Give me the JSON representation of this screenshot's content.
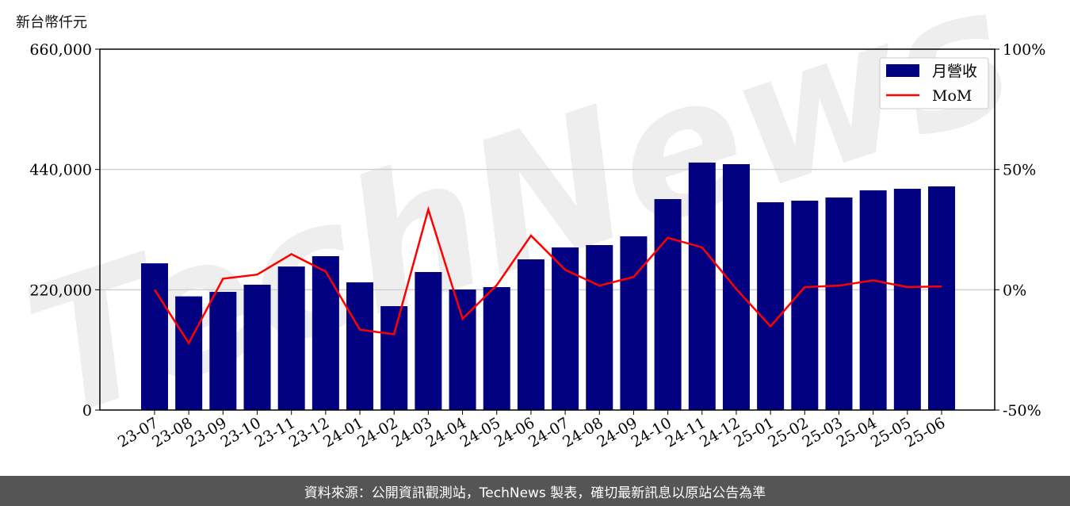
{
  "chart_data": {
    "type": "bar+line",
    "y_unit_label": "新台幣仟元",
    "categories": [
      "23-07",
      "23-08",
      "23-09",
      "23-10",
      "23-11",
      "23-12",
      "24-01",
      "24-02",
      "24-03",
      "24-04",
      "24-05",
      "24-06",
      "24-07",
      "24-08",
      "24-09",
      "24-10",
      "24-11",
      "24-12",
      "25-01",
      "25-02",
      "25-03",
      "25-04",
      "25-05",
      "25-06"
    ],
    "series": [
      {
        "name": "月營收",
        "type": "bar",
        "axis": "left",
        "color": "#000080",
        "values": [
          268300,
          207900,
          216100,
          229200,
          262500,
          281400,
          233500,
          190000,
          252400,
          220500,
          224800,
          275600,
          297400,
          301700,
          317700,
          385800,
          452600,
          449700,
          380000,
          382900,
          388700,
          401800,
          404700,
          409000
        ]
      },
      {
        "name": "MoM",
        "type": "line",
        "axis": "right",
        "color": "#ff0000",
        "values": [
          0,
          -22.2,
          4.6,
          6.3,
          14.8,
          7.6,
          -16.6,
          -18.5,
          33.4,
          -12.1,
          1.9,
          22.5,
          8.3,
          1.7,
          5.3,
          21.6,
          17.6,
          0.3,
          -15.2,
          1.1,
          1.7,
          3.9,
          1.1,
          1.4
        ]
      }
    ],
    "y_left": {
      "range": [
        0,
        660000
      ],
      "ticks": [
        "0",
        "220,000",
        "440,000",
        "660,000"
      ],
      "tick_values": [
        0,
        220000,
        440000,
        660000
      ]
    },
    "y_right": {
      "range": [
        -50,
        100
      ],
      "ticks": [
        "-50%",
        "0%",
        "50%",
        "100%"
      ],
      "tick_values": [
        -50,
        0,
        50,
        100
      ]
    },
    "grid": "horizontal",
    "legend": "top-right",
    "watermark": "TechNews"
  },
  "footer": {
    "source_text": "資料來源：公開資訊觀測站，TechNews 製表，確切最新訊息以原站公告為準"
  }
}
